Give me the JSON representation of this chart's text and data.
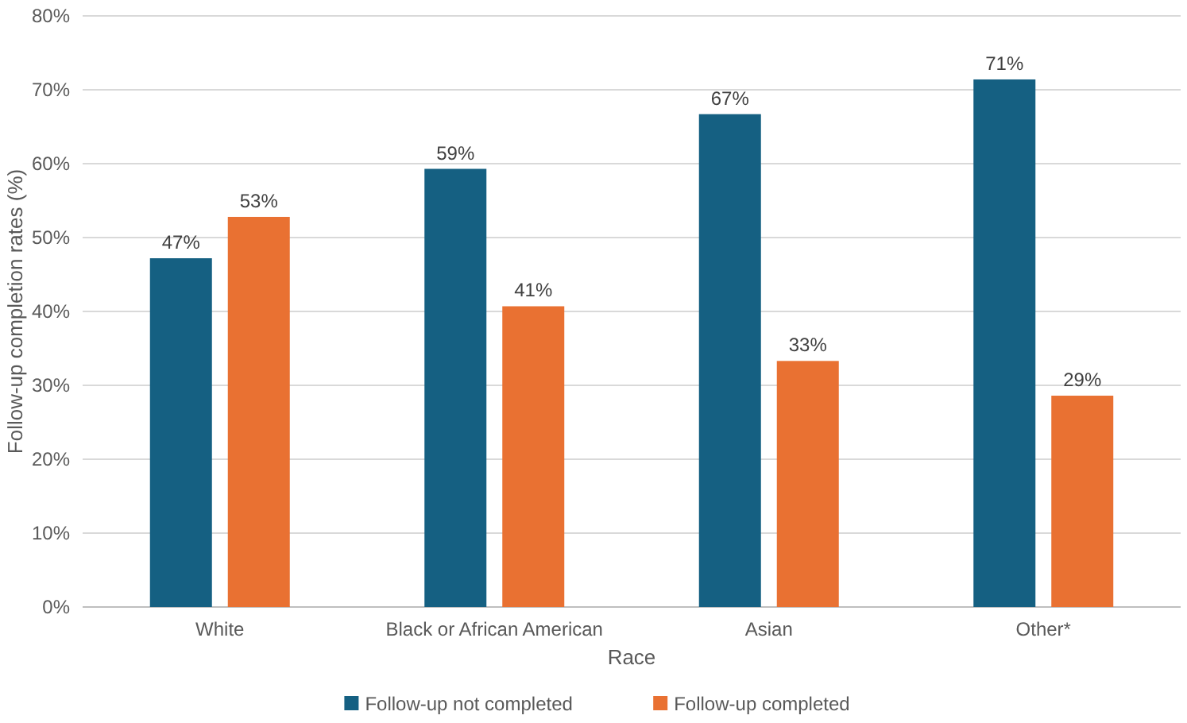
{
  "chart_data": {
    "type": "bar",
    "xlabel": "Race",
    "ylabel": "Follow-up completion rates (%)",
    "categories": [
      "White",
      "Black or African American",
      "Asian",
      "Other*"
    ],
    "series": [
      {
        "name": "Follow-up not completed",
        "color": "#156082",
        "values": [
          47.2,
          59.3,
          66.7,
          71.4
        ],
        "value_labels": [
          "47%",
          "59%",
          "67%",
          "71%"
        ]
      },
      {
        "name": "Follow-up completed",
        "color": "#e97132",
        "values": [
          52.8,
          40.7,
          33.3,
          28.6
        ],
        "value_labels": [
          "53%",
          "41%",
          "33%",
          "29%"
        ]
      }
    ],
    "ylim": [
      0,
      80
    ],
    "yticks": [
      {
        "value": 0,
        "label": "0%"
      },
      {
        "value": 10,
        "label": "10%"
      },
      {
        "value": 20,
        "label": "20%"
      },
      {
        "value": 30,
        "label": "30%"
      },
      {
        "value": 40,
        "label": "40%"
      },
      {
        "value": 50,
        "label": "50%"
      },
      {
        "value": 60,
        "label": "60%"
      },
      {
        "value": 70,
        "label": "70%"
      },
      {
        "value": 80,
        "label": "80%"
      }
    ],
    "grid": "y",
    "legend": "bottom"
  }
}
